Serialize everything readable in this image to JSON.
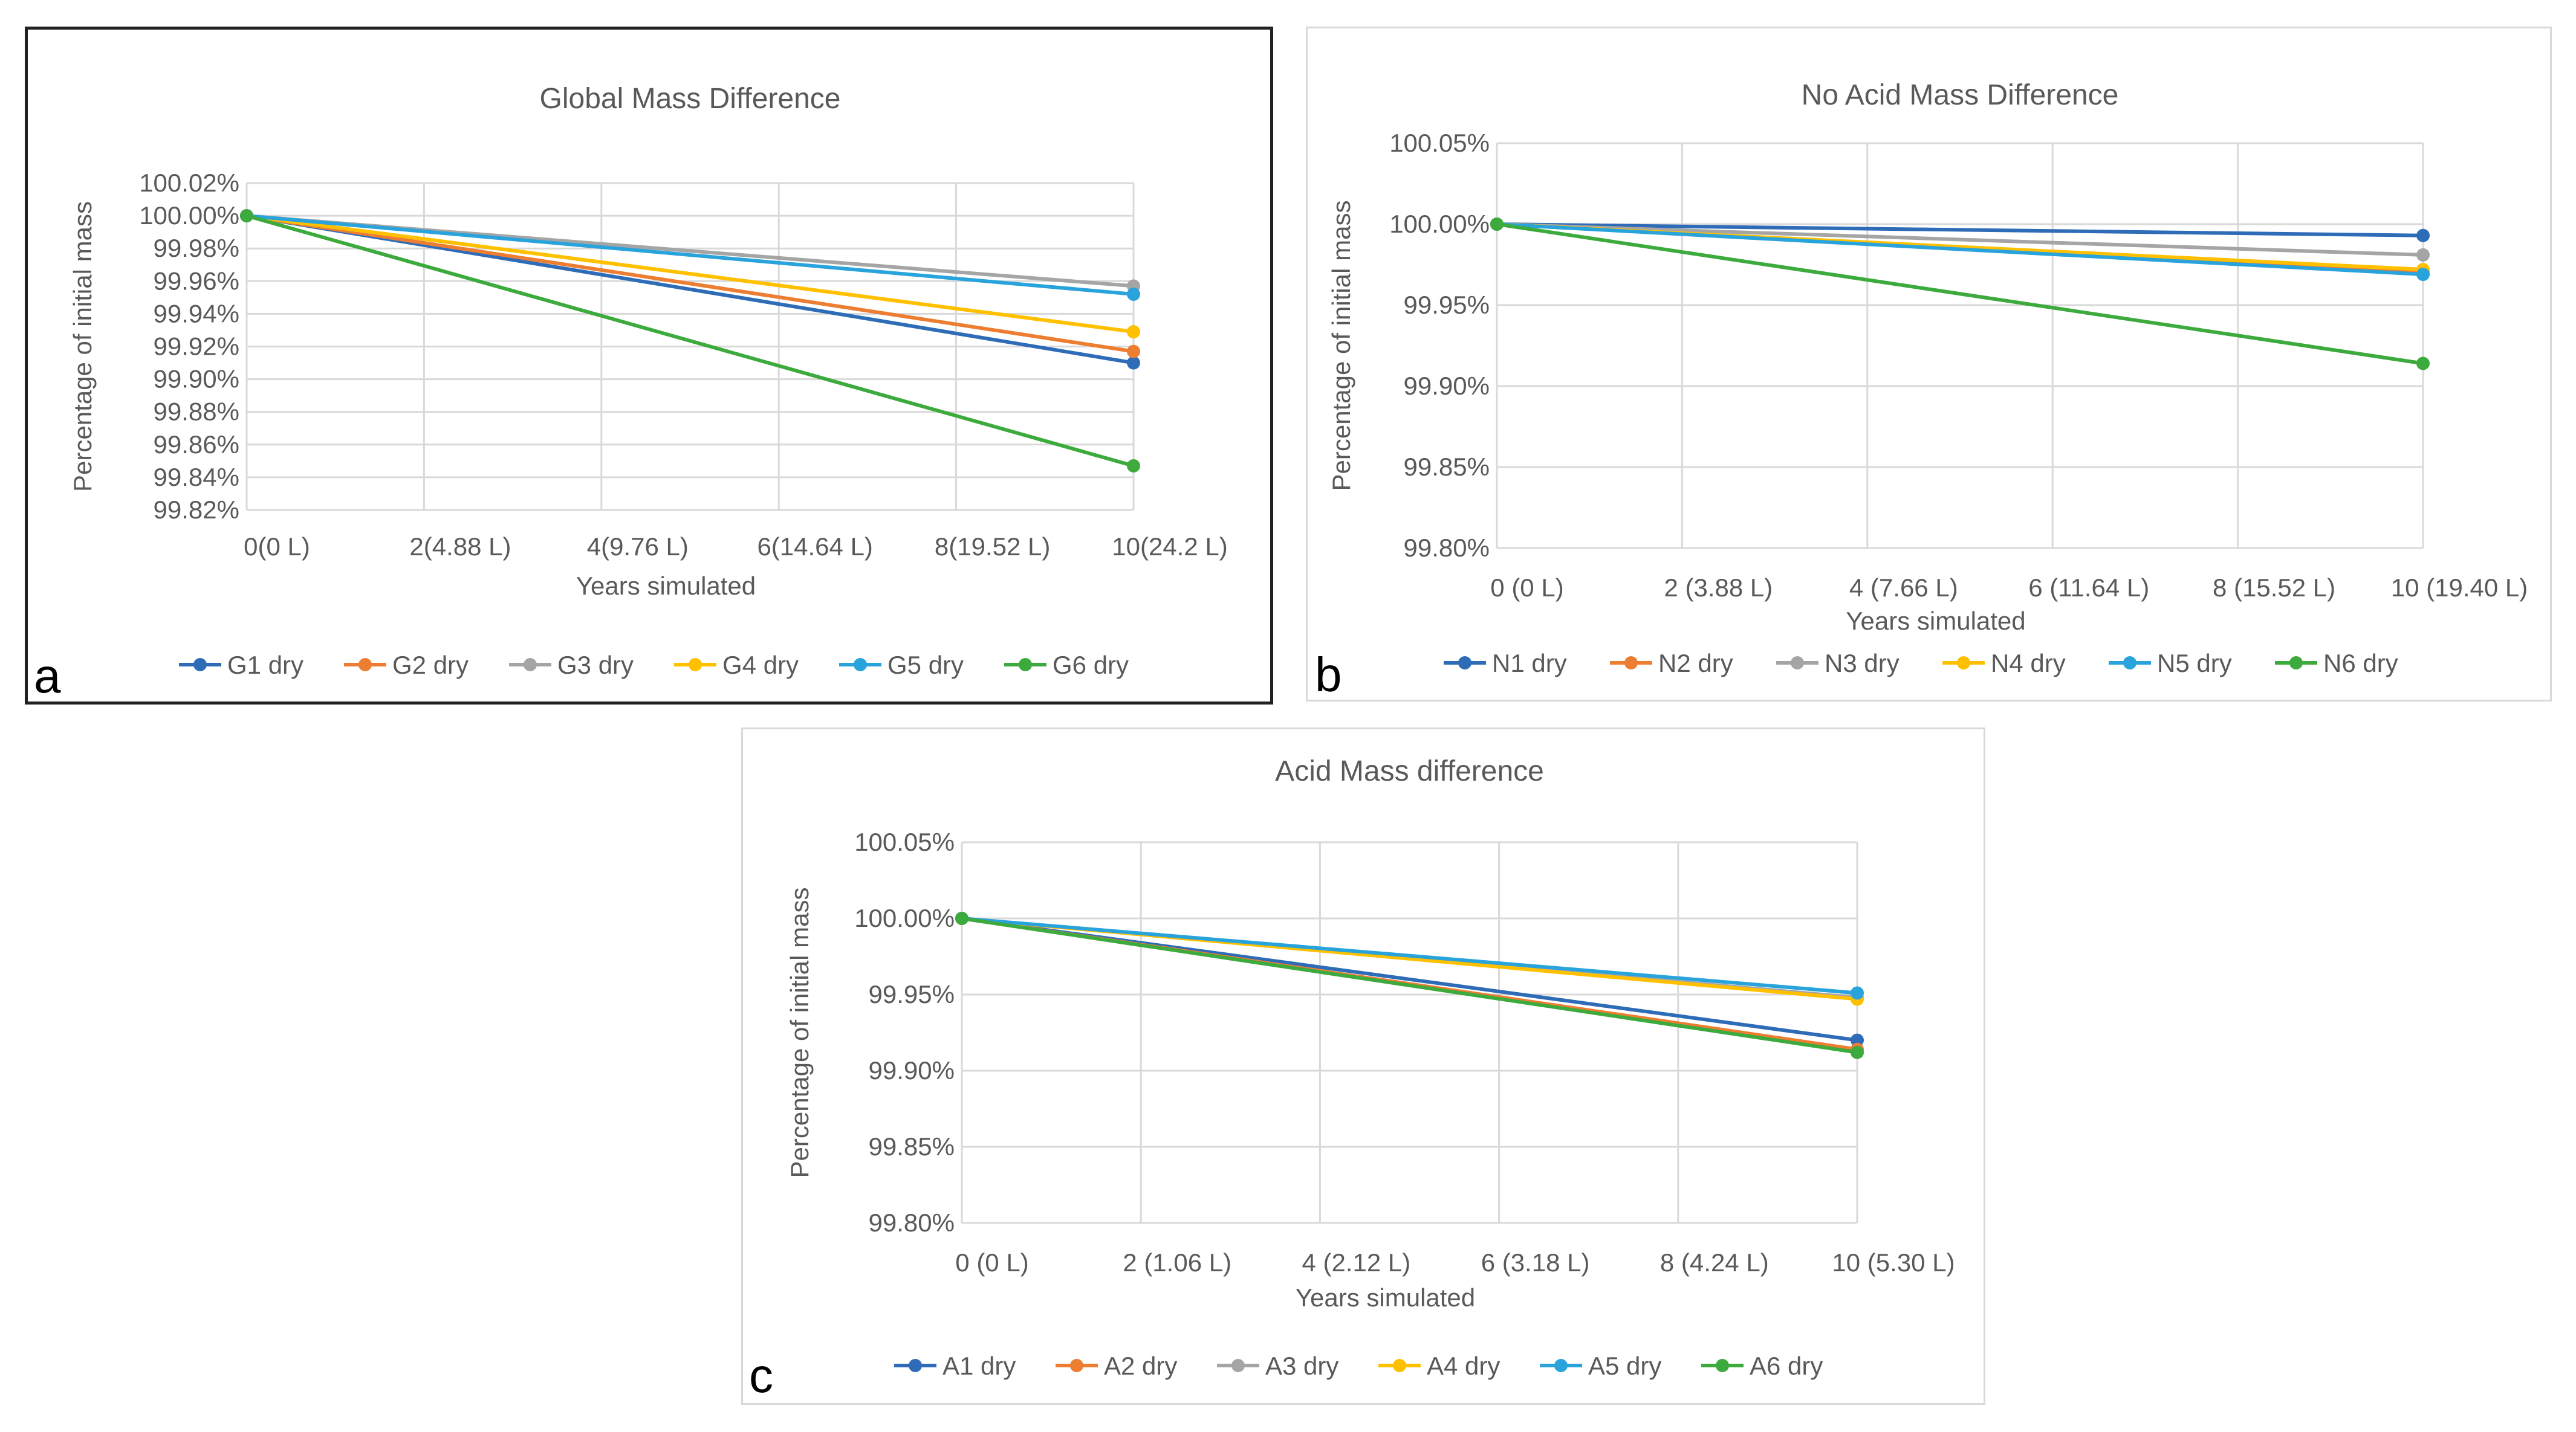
{
  "chart_data": [
    {
      "id": "a",
      "type": "line",
      "panel_label": "a",
      "title": "Global Mass Difference",
      "xlabel": "Years simulated",
      "ylabel": "Percentage of initial mass",
      "x": [
        0,
        10
      ],
      "x_ticks": [
        0,
        2,
        4,
        6,
        8,
        10
      ],
      "x_tick_labels": [
        "0(0 L)",
        "2(4.88 L)",
        "4(9.76 L)",
        "6(14.64 L)",
        "8(19.52 L)",
        "10(24.2 L)"
      ],
      "ylim": [
        99.82,
        100.02
      ],
      "y_ticks": [
        99.82,
        99.84,
        99.86,
        99.88,
        99.9,
        99.92,
        99.94,
        99.96,
        99.98,
        100.0,
        100.02
      ],
      "y_tick_labels": [
        "99.82%",
        "99.84%",
        "99.86%",
        "99.88%",
        "99.90%",
        "99.92%",
        "99.94%",
        "99.96%",
        "99.98%",
        "100.00%",
        "100.02%"
      ],
      "grid": true,
      "legend": "bottom",
      "series": [
        {
          "name": "G1 dry",
          "values": [
            100.0,
            99.91
          ],
          "color": "#2e6cb8"
        },
        {
          "name": "G2 dry",
          "values": [
            100.0,
            99.917
          ],
          "color": "#ed7d31"
        },
        {
          "name": "G3 dry",
          "values": [
            100.0,
            99.957
          ],
          "color": "#a5a5a5"
        },
        {
          "name": "G4 dry",
          "values": [
            100.0,
            99.929
          ],
          "color": "#ffc000"
        },
        {
          "name": "G5 dry",
          "values": [
            100.0,
            99.952
          ],
          "color": "#29a3dc"
        },
        {
          "name": "G6 dry",
          "values": [
            100.0,
            99.847
          ],
          "color": "#3daa3d"
        }
      ]
    },
    {
      "id": "b",
      "type": "line",
      "panel_label": "b",
      "title": "No Acid Mass Difference",
      "xlabel": "Years simulated",
      "ylabel": "Percentage of initial mass",
      "x": [
        0,
        10
      ],
      "x_ticks": [
        0,
        2,
        4,
        6,
        8,
        10
      ],
      "x_tick_labels": [
        "0 (0 L)",
        "2 (3.88 L)",
        "4 (7.66 L)",
        "6 (11.64 L)",
        "8 (15.52 L)",
        "10 (19.40 L)"
      ],
      "ylim": [
        99.8,
        100.05
      ],
      "y_ticks": [
        99.8,
        99.85,
        99.9,
        99.95,
        100.0,
        100.05
      ],
      "y_tick_labels": [
        "99.80%",
        "99.85%",
        "99.90%",
        "99.95%",
        "100.00%",
        "100.05%"
      ],
      "grid": true,
      "legend": "bottom",
      "series": [
        {
          "name": "N1 dry",
          "values": [
            100.0,
            99.993
          ],
          "color": "#2e6cb8"
        },
        {
          "name": "N2 dry",
          "values": [
            100.0,
            99.971
          ],
          "color": "#ed7d31"
        },
        {
          "name": "N3 dry",
          "values": [
            100.0,
            99.981
          ],
          "color": "#a5a5a5"
        },
        {
          "name": "N4 dry",
          "values": [
            100.0,
            99.972
          ],
          "color": "#ffc000"
        },
        {
          "name": "N5 dry",
          "values": [
            100.0,
            99.969
          ],
          "color": "#29a3dc"
        },
        {
          "name": "N6 dry",
          "values": [
            100.0,
            99.914
          ],
          "color": "#3daa3d"
        }
      ]
    },
    {
      "id": "c",
      "type": "line",
      "panel_label": "c",
      "title": "Acid Mass difference",
      "xlabel": "Years simulated",
      "ylabel": "Percentage of initial mass",
      "x": [
        0,
        10
      ],
      "x_ticks": [
        0,
        2,
        4,
        6,
        8,
        10
      ],
      "x_tick_labels": [
        "0 (0 L)",
        "2 (1.06 L)",
        "4 (2.12 L)",
        "6 (3.18 L)",
        "8 (4.24 L)",
        "10 (5.30 L)"
      ],
      "ylim": [
        99.8,
        100.05
      ],
      "y_ticks": [
        99.8,
        99.85,
        99.9,
        99.95,
        100.0,
        100.05
      ],
      "y_tick_labels": [
        "99.80%",
        "99.85%",
        "99.90%",
        "99.95%",
        "100.00%",
        "100.05%"
      ],
      "grid": true,
      "legend": "bottom",
      "series": [
        {
          "name": "A1 dry",
          "values": [
            100.0,
            99.92
          ],
          "color": "#2e6cb8"
        },
        {
          "name": "A2 dry",
          "values": [
            100.0,
            99.914
          ],
          "color": "#ed7d31"
        },
        {
          "name": "A3 dry",
          "values": [
            100.0,
            99.948
          ],
          "color": "#a5a5a5"
        },
        {
          "name": "A4 dry",
          "values": [
            100.0,
            99.947
          ],
          "color": "#ffc000"
        },
        {
          "name": "A5 dry",
          "values": [
            100.0,
            99.951
          ],
          "color": "#29a3dc"
        },
        {
          "name": "A6 dry",
          "values": [
            100.0,
            99.912
          ],
          "color": "#3daa3d"
        }
      ]
    }
  ]
}
